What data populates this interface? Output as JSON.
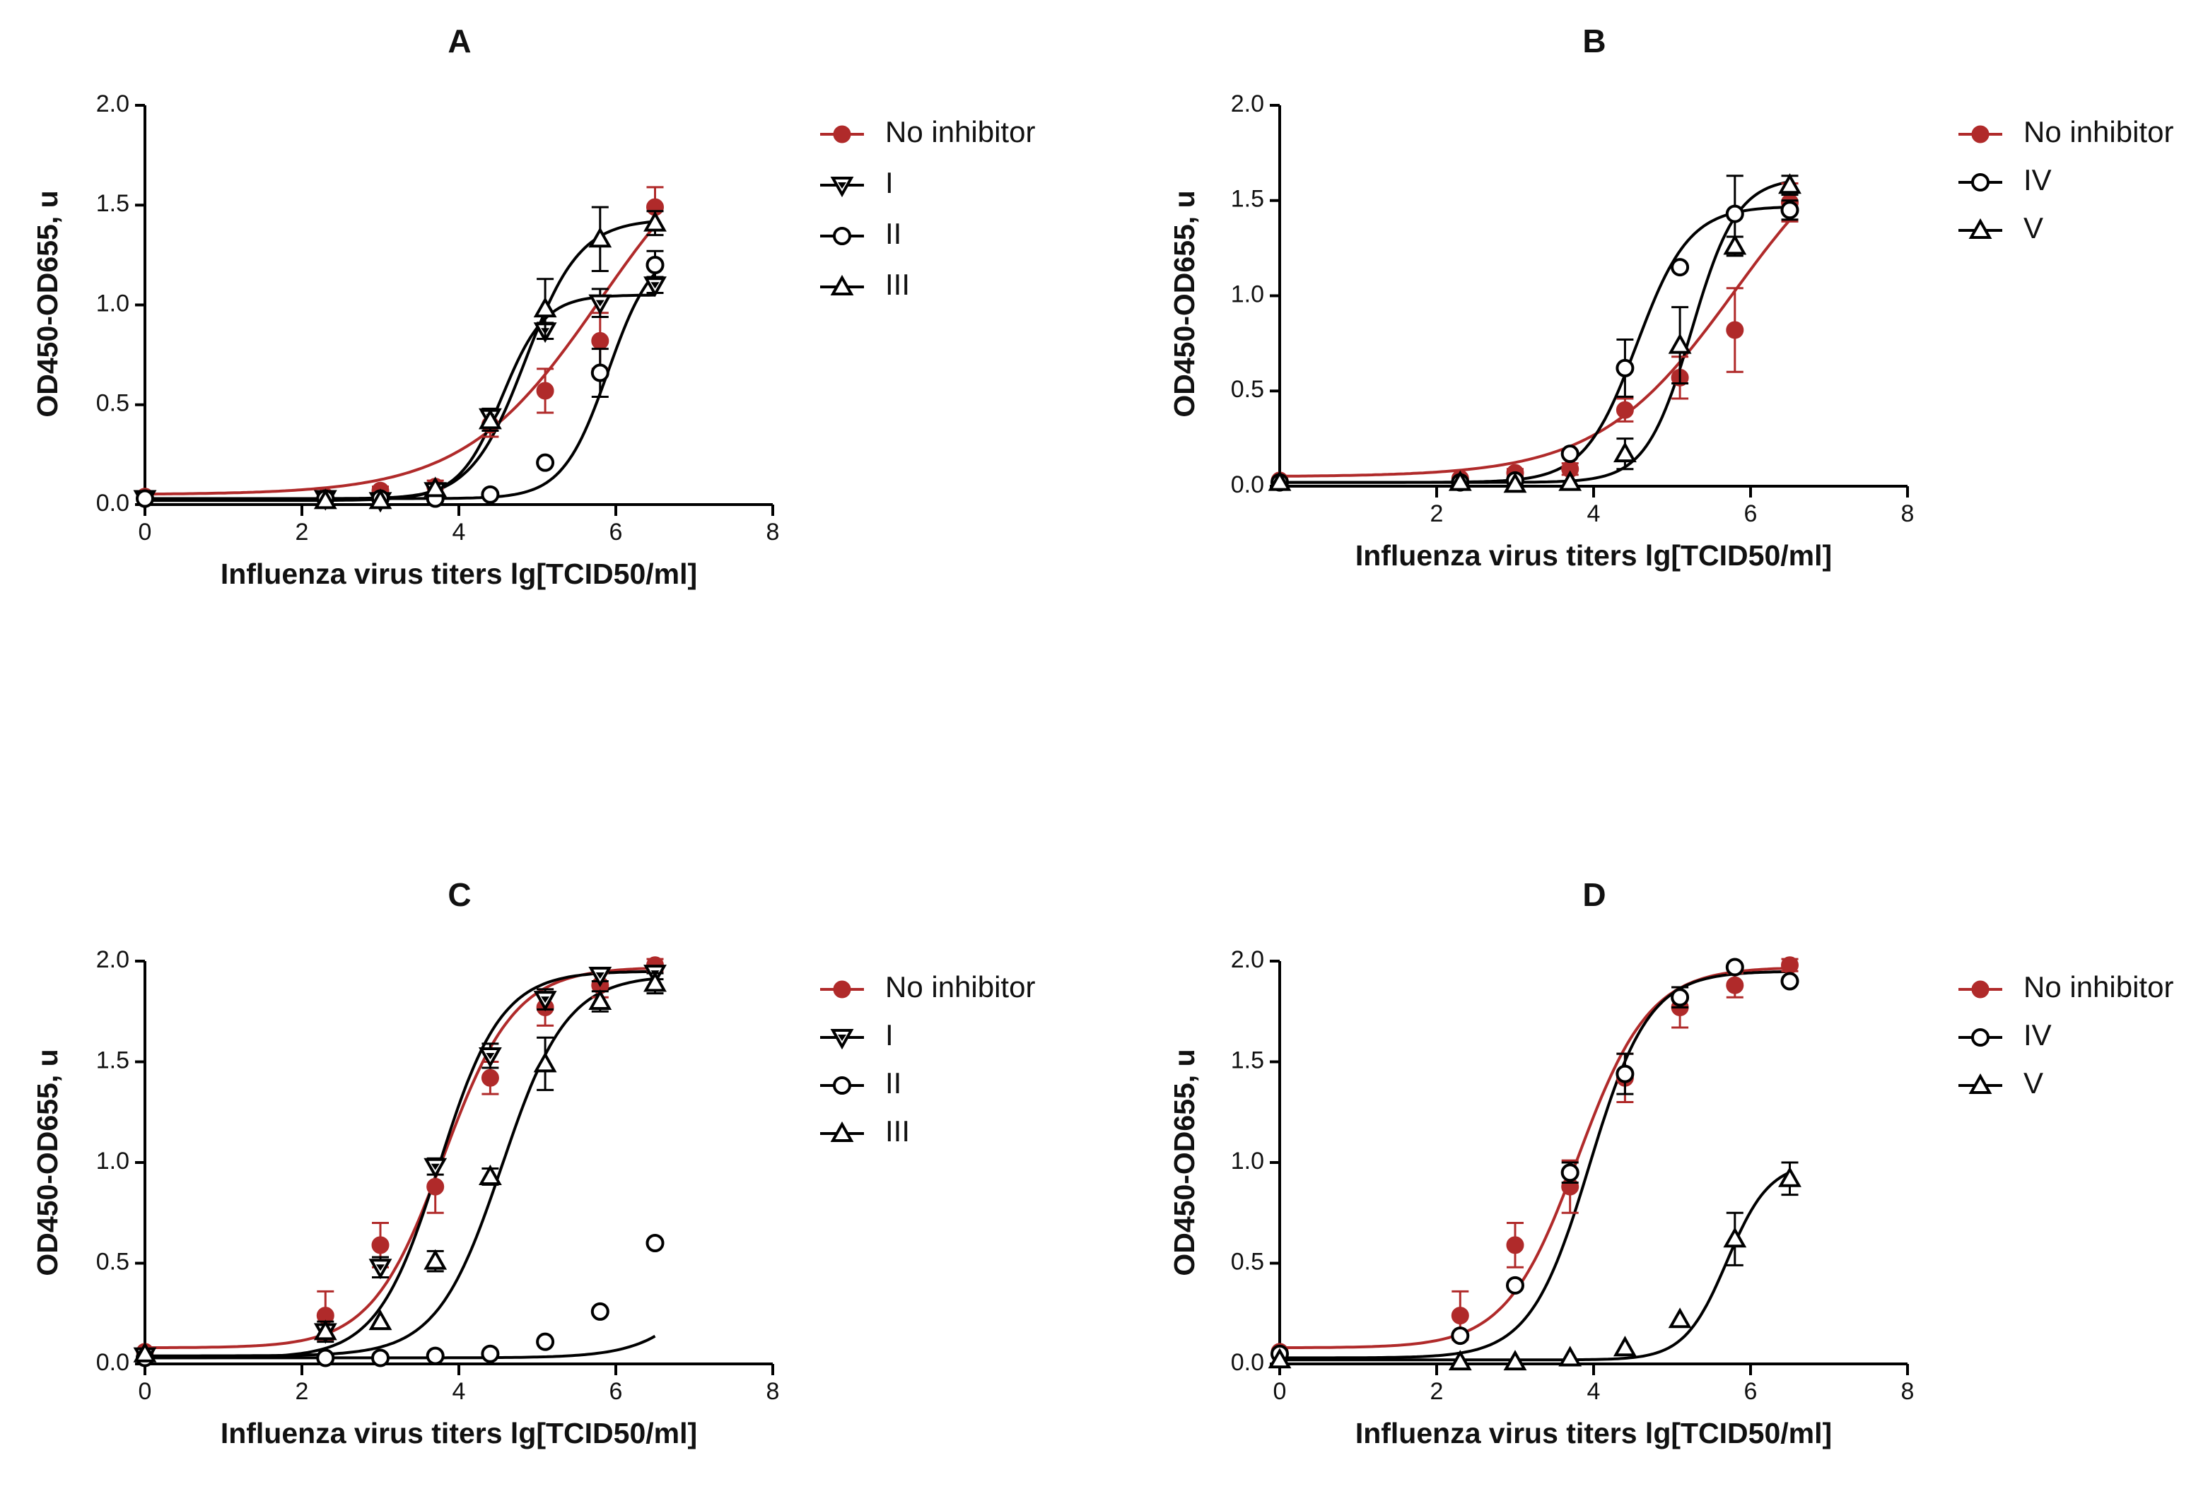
{
  "figure": {
    "chart_data": [
      {
        "type": "scatter",
        "title": "A",
        "xlabel": "Influenza virus titers lg[TCID50/ml]",
        "ylabel": "OD450-OD655, u",
        "xlim": [
          0,
          8
        ],
        "ylim": [
          0,
          2
        ],
        "xticks": [
          "0",
          "2",
          "4",
          "6",
          "8"
        ],
        "yticks": [
          "0.0",
          "0.5",
          "1.0",
          "1.5",
          "2.0"
        ],
        "legend_position": "right",
        "series": [
          {
            "name": "No inhibitor",
            "color": "#b02a2a",
            "marker": "filled-circle",
            "x": [
              0,
              2.3,
              3.0,
              3.7,
              4.4,
              5.1,
              5.8,
              6.5
            ],
            "y": [
              0.04,
              0.04,
              0.07,
              0.09,
              0.4,
              0.57,
              0.82,
              1.49
            ],
            "err": [
              0,
              0,
              0.02,
              0.03,
              0.06,
              0.11,
              0.14,
              0.1
            ],
            "fit": {
              "bottom": 0.05,
              "top": 2.0,
              "ec50": 5.8,
              "hill": 0.5
            }
          },
          {
            "name": "I",
            "color": "#000000",
            "marker": "down-triangle",
            "x": [
              0,
              2.3,
              3.0,
              3.7,
              4.4,
              5.1,
              5.8,
              6.5
            ],
            "y": [
              0.03,
              0.03,
              0.02,
              0.07,
              0.44,
              0.87,
              1.01,
              1.1
            ],
            "err": [
              0,
              0,
              0,
              0,
              0.04,
              0.04,
              0.07,
              0.04
            ],
            "fit": {
              "bottom": 0.03,
              "top": 1.05,
              "ec50": 4.55,
              "hill": 1.6
            }
          },
          {
            "name": "II",
            "color": "#000000",
            "marker": "open-circle",
            "x": [
              0,
              2.3,
              3.0,
              3.7,
              4.4,
              5.1,
              5.8,
              6.5
            ],
            "y": [
              0.03,
              0.03,
              0.03,
              0.03,
              0.05,
              0.21,
              0.66,
              1.2
            ],
            "err": [
              0,
              0,
              0,
              0,
              0,
              0,
              0.12,
              0.07
            ],
            "fit": {
              "bottom": 0.03,
              "top": 1.3,
              "ec50": 5.9,
              "hill": 1.5
            }
          },
          {
            "name": "III",
            "color": "#000000",
            "marker": "open-triangle",
            "x": [
              2.3,
              3.0,
              3.7,
              4.4,
              5.1,
              5.8,
              6.5
            ],
            "y": [
              0.02,
              0.02,
              0.08,
              0.42,
              0.98,
              1.33,
              1.41
            ],
            "err": [
              0,
              0,
              0,
              0.05,
              0.15,
              0.16,
              0.06
            ],
            "fit": {
              "bottom": 0.02,
              "top": 1.43,
              "ec50": 4.85,
              "hill": 1.25
            }
          }
        ]
      },
      {
        "type": "scatter",
        "title": "B",
        "xlabel": "Influenza virus titers lg[TCID50/ml]",
        "ylabel": "OD450-OD655, u",
        "xlim": [
          0,
          8
        ],
        "ylim": [
          0,
          2
        ],
        "xticks": [
          "2",
          "4",
          "6",
          "8"
        ],
        "yticks": [
          "0.0",
          "0.5",
          "1.0",
          "1.5",
          "2.0"
        ],
        "legend_position": "right",
        "series": [
          {
            "name": "No inhibitor",
            "color": "#b02a2a",
            "marker": "filled-circle",
            "x": [
              0,
              2.3,
              3.0,
              3.7,
              4.4,
              5.1,
              5.8,
              6.5
            ],
            "y": [
              0.03,
              0.04,
              0.07,
              0.09,
              0.4,
              0.57,
              0.82,
              1.49
            ],
            "err": [
              0,
              0,
              0.02,
              0.03,
              0.06,
              0.11,
              0.22,
              0.1
            ],
            "fit": {
              "bottom": 0.05,
              "top": 2.0,
              "ec50": 5.8,
              "hill": 0.5
            }
          },
          {
            "name": "IV",
            "color": "#000000",
            "marker": "open-circle",
            "x": [
              0,
              2.3,
              3.0,
              3.7,
              4.4,
              5.1,
              5.8,
              6.5
            ],
            "y": [
              0.02,
              0.02,
              0.03,
              0.17,
              0.62,
              1.15,
              1.43,
              1.45
            ],
            "err": [
              0,
              0,
              0,
              0,
              0.15,
              0,
              0.2,
              0.05
            ],
            "fit": {
              "bottom": 0.02,
              "top": 1.47,
              "ec50": 4.55,
              "hill": 1.3
            }
          },
          {
            "name": "V",
            "color": "#000000",
            "marker": "open-triangle",
            "x": [
              0,
              2.3,
              3.0,
              3.7,
              4.4,
              5.1,
              5.8,
              6.5
            ],
            "y": [
              0.02,
              0.02,
              0.01,
              0.02,
              0.17,
              0.74,
              1.26,
              1.58
            ],
            "err": [
              0,
              0,
              0,
              0,
              0.08,
              0.2,
              0.05,
              0.05
            ],
            "fit": {
              "bottom": 0.02,
              "top": 1.62,
              "ec50": 5.25,
              "hill": 1.5
            }
          }
        ]
      },
      {
        "type": "scatter",
        "title": "C",
        "xlabel": "Influenza virus titers lg[TCID50/ml]",
        "ylabel": "OD450-OD655, u",
        "xlim": [
          0,
          8
        ],
        "ylim": [
          0,
          2
        ],
        "xticks": [
          "0",
          "2",
          "4",
          "6",
          "8"
        ],
        "yticks": [
          "0.0",
          "0.5",
          "1.0",
          "1.5",
          "2.0"
        ],
        "legend_position": "right",
        "series": [
          {
            "name": "No inhibitor",
            "color": "#b02a2a",
            "marker": "filled-circle",
            "x": [
              0,
              2.3,
              3.0,
              3.7,
              4.4,
              5.1,
              5.8,
              6.5
            ],
            "y": [
              0.06,
              0.24,
              0.59,
              0.88,
              1.42,
              1.77,
              1.88,
              1.98
            ],
            "err": [
              0,
              0.12,
              0.11,
              0.13,
              0.08,
              0.09,
              0.06,
              0.03
            ],
            "fit": {
              "bottom": 0.08,
              "top": 1.97,
              "ec50": 3.8,
              "hill": 0.95
            }
          },
          {
            "name": "I",
            "color": "#000000",
            "marker": "down-triangle",
            "x": [
              0,
              2.3,
              3.0,
              3.7,
              4.4,
              5.1,
              5.8,
              6.5
            ],
            "y": [
              0.04,
              0.16,
              0.48,
              0.98,
              1.53,
              1.81,
              1.93,
              1.94
            ],
            "err": [
              0,
              0.05,
              0.05,
              0.04,
              0.06,
              0.05,
              0.03,
              0.03
            ],
            "fit": {
              "bottom": 0.03,
              "top": 1.95,
              "ec50": 3.75,
              "hill": 1.1
            }
          },
          {
            "name": "II",
            "color": "#000000",
            "marker": "open-circle",
            "x": [
              0,
              2.3,
              3.0,
              3.7,
              4.4,
              5.1,
              5.8,
              6.5
            ],
            "y": [
              0.03,
              0.03,
              0.03,
              0.04,
              0.05,
              0.11,
              0.26,
              0.6
            ],
            "err": [
              0,
              0,
              0,
              0,
              0,
              0,
              0,
              0
            ],
            "fit": {
              "bottom": 0.03,
              "top": 2.0,
              "ec50": 7.8,
              "hill": 0.95
            }
          },
          {
            "name": "III",
            "color": "#000000",
            "marker": "open-triangle",
            "x": [
              0,
              2.3,
              3.0,
              3.7,
              4.4,
              5.1,
              5.8,
              6.5
            ],
            "y": [
              0.05,
              0.16,
              0.21,
              0.51,
              0.93,
              1.49,
              1.8,
              1.89
            ],
            "err": [
              0,
              0,
              0,
              0.05,
              0.04,
              0.13,
              0.05,
              0.05
            ],
            "fit": {
              "bottom": 0.04,
              "top": 1.93,
              "ec50": 4.55,
              "hill": 1.05
            }
          }
        ]
      },
      {
        "type": "scatter",
        "title": "D",
        "xlabel": "Influenza virus titers lg[TCID50/ml]",
        "ylabel": "OD450-OD655, u",
        "xlim": [
          0,
          8
        ],
        "ylim": [
          0,
          2
        ],
        "xticks": [
          "0",
          "2",
          "4",
          "6",
          "8"
        ],
        "yticks": [
          "0.0",
          "0.5",
          "1.0",
          "1.5",
          "2.0"
        ],
        "legend_position": "right",
        "series": [
          {
            "name": "No inhibitor",
            "color": "#b02a2a",
            "marker": "filled-circle",
            "x": [
              0,
              2.3,
              3.0,
              3.7,
              4.4,
              5.1,
              5.8,
              6.5
            ],
            "y": [
              0.06,
              0.24,
              0.59,
              0.88,
              1.42,
              1.77,
              1.88,
              1.98
            ],
            "err": [
              0,
              0.12,
              0.11,
              0.13,
              0.12,
              0.1,
              0.06,
              0.03
            ],
            "fit": {
              "bottom": 0.08,
              "top": 1.97,
              "ec50": 3.8,
              "hill": 0.95
            }
          },
          {
            "name": "IV",
            "color": "#000000",
            "marker": "open-circle",
            "x": [
              0,
              2.3,
              3.0,
              3.7,
              4.4,
              5.1,
              5.8,
              6.5
            ],
            "y": [
              0.05,
              0.14,
              0.39,
              0.95,
              1.44,
              1.82,
              1.97,
              1.9
            ],
            "err": [
              0,
              0,
              0,
              0.05,
              0.1,
              0.05,
              0,
              0
            ],
            "fit": {
              "bottom": 0.03,
              "top": 1.95,
              "ec50": 3.95,
              "hill": 1.15
            }
          },
          {
            "name": "V",
            "color": "#000000",
            "marker": "open-triangle",
            "x": [
              0,
              2.3,
              3.0,
              3.7,
              4.4,
              5.1,
              5.8,
              6.5
            ],
            "y": [
              0.02,
              0.01,
              0.01,
              0.03,
              0.08,
              0.22,
              0.62,
              0.92
            ],
            "err": [
              0,
              0,
              0,
              0,
              0,
              0,
              0.13,
              0.08
            ],
            "fit": {
              "bottom": 0.02,
              "top": 1.0,
              "ec50": 5.7,
              "hill": 1.6
            }
          }
        ]
      }
    ]
  }
}
